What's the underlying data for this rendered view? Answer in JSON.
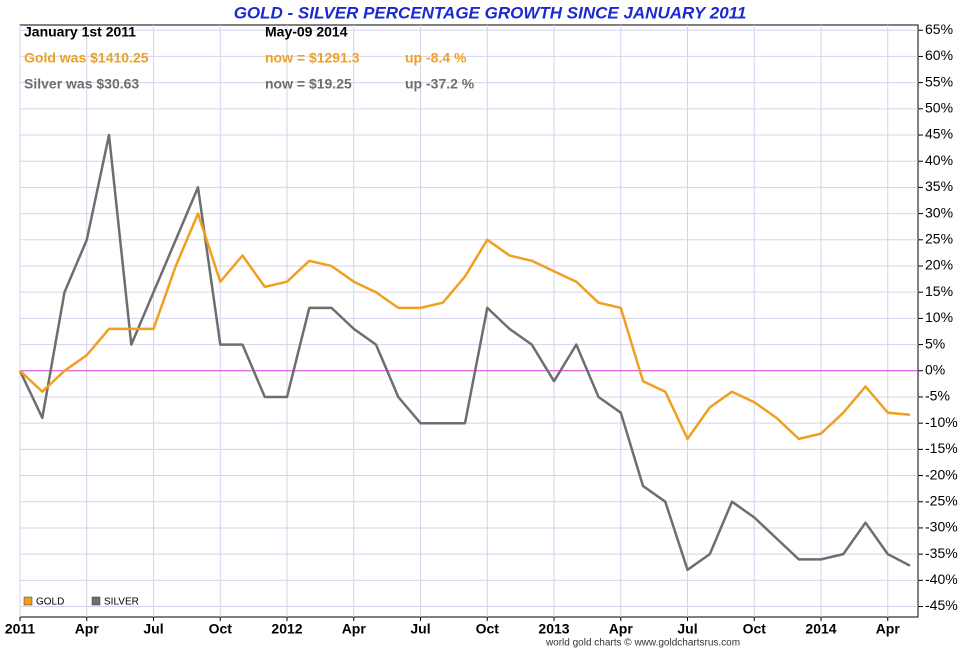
{
  "chart_data": {
    "type": "line",
    "title": "GOLD - SILVER PERCENTAGE GROWTH SINCE JANUARY 2011",
    "info": {
      "start_date": "January 1st 2011",
      "gold_start": "Gold was $1410.25",
      "silver_start": "Silver was $30.63",
      "end_date": "May-09  2014",
      "gold_now": "now = $1291.3",
      "silver_now": "now = $19.25",
      "gold_change": "up -8.4 %",
      "silver_change": "up -37.2 %"
    },
    "footer": "world gold charts © www.goldchartsrus.com",
    "x": [
      "2011-01",
      "2011-02",
      "2011-03",
      "2011-04",
      "2011-05",
      "2011-06",
      "2011-07",
      "2011-08",
      "2011-09",
      "2011-10",
      "2011-11",
      "2011-12",
      "2012-01",
      "2012-02",
      "2012-03",
      "2012-04",
      "2012-05",
      "2012-06",
      "2012-07",
      "2012-08",
      "2012-09",
      "2012-10",
      "2012-11",
      "2012-12",
      "2013-01",
      "2013-02",
      "2013-03",
      "2013-04",
      "2013-05",
      "2013-06",
      "2013-07",
      "2013-08",
      "2013-09",
      "2013-10",
      "2013-11",
      "2013-12",
      "2014-01",
      "2014-02",
      "2014-03",
      "2014-04",
      "2014-05"
    ],
    "series": [
      {
        "name": "GOLD",
        "color": "#f0a020",
        "values": [
          0,
          -4,
          0,
          3,
          8,
          8,
          8,
          20,
          30,
          17,
          22,
          16,
          17,
          21,
          20,
          17,
          15,
          12,
          12,
          13,
          18,
          25,
          22,
          21,
          19,
          17,
          13,
          12,
          -2,
          -4,
          -13,
          -7,
          -4,
          -6,
          -9,
          -13,
          -12,
          -8,
          -3,
          -8,
          -8.4
        ]
      },
      {
        "name": "SILVER",
        "color": "#6e6e6e",
        "values": [
          0,
          -9,
          15,
          25,
          45,
          5,
          15,
          25,
          35,
          5,
          5,
          -5,
          -5,
          12,
          12,
          8,
          5,
          -5,
          -10,
          -10,
          -10,
          12,
          8,
          5,
          -2,
          5,
          -5,
          -8,
          -22,
          -25,
          -38,
          -35,
          -25,
          -28,
          -32,
          -36,
          -36,
          -35,
          -29,
          -35,
          -37.2
        ]
      }
    ],
    "xlim": [
      "2011-01",
      "2014-05"
    ],
    "xticks": [
      {
        "value": "2011-01",
        "label": "2011"
      },
      {
        "value": "2011-04",
        "label": "Apr"
      },
      {
        "value": "2011-07",
        "label": "Jul"
      },
      {
        "value": "2011-10",
        "label": "Oct"
      },
      {
        "value": "2012-01",
        "label": "2012"
      },
      {
        "value": "2012-04",
        "label": "Apr"
      },
      {
        "value": "2012-07",
        "label": "Jul"
      },
      {
        "value": "2012-10",
        "label": "Oct"
      },
      {
        "value": "2013-01",
        "label": "2013"
      },
      {
        "value": "2013-04",
        "label": "Apr"
      },
      {
        "value": "2013-07",
        "label": "Jul"
      },
      {
        "value": "2013-10",
        "label": "Oct"
      },
      {
        "value": "2014-01",
        "label": "2014"
      },
      {
        "value": "2014-04",
        "label": "Apr"
      }
    ],
    "ylim": [
      -47,
      66
    ],
    "yticks": [
      {
        "value": 65,
        "label": "65%"
      },
      {
        "value": 60,
        "label": "60%"
      },
      {
        "value": 55,
        "label": "55%"
      },
      {
        "value": 50,
        "label": "50%"
      },
      {
        "value": 45,
        "label": "45%"
      },
      {
        "value": 40,
        "label": "40%"
      },
      {
        "value": 35,
        "label": "35%"
      },
      {
        "value": 30,
        "label": "30%"
      },
      {
        "value": 25,
        "label": "25%"
      },
      {
        "value": 20,
        "label": "20%"
      },
      {
        "value": 15,
        "label": "15%"
      },
      {
        "value": 10,
        "label": "10%"
      },
      {
        "value": 5,
        "label": "5%"
      },
      {
        "value": 0,
        "label": "0%"
      },
      {
        "value": -5,
        "label": "-5%"
      },
      {
        "value": -10,
        "label": "-10%"
      },
      {
        "value": -15,
        "label": "-15%"
      },
      {
        "value": -20,
        "label": "-20%"
      },
      {
        "value": -25,
        "label": "-25%"
      },
      {
        "value": -30,
        "label": "-30%"
      },
      {
        "value": -35,
        "label": "-35%"
      },
      {
        "value": -40,
        "label": "-40%"
      },
      {
        "value": -45,
        "label": "-45%"
      }
    ],
    "grid": true,
    "zero_line_color": "#e040e0",
    "legend": "lower left"
  }
}
